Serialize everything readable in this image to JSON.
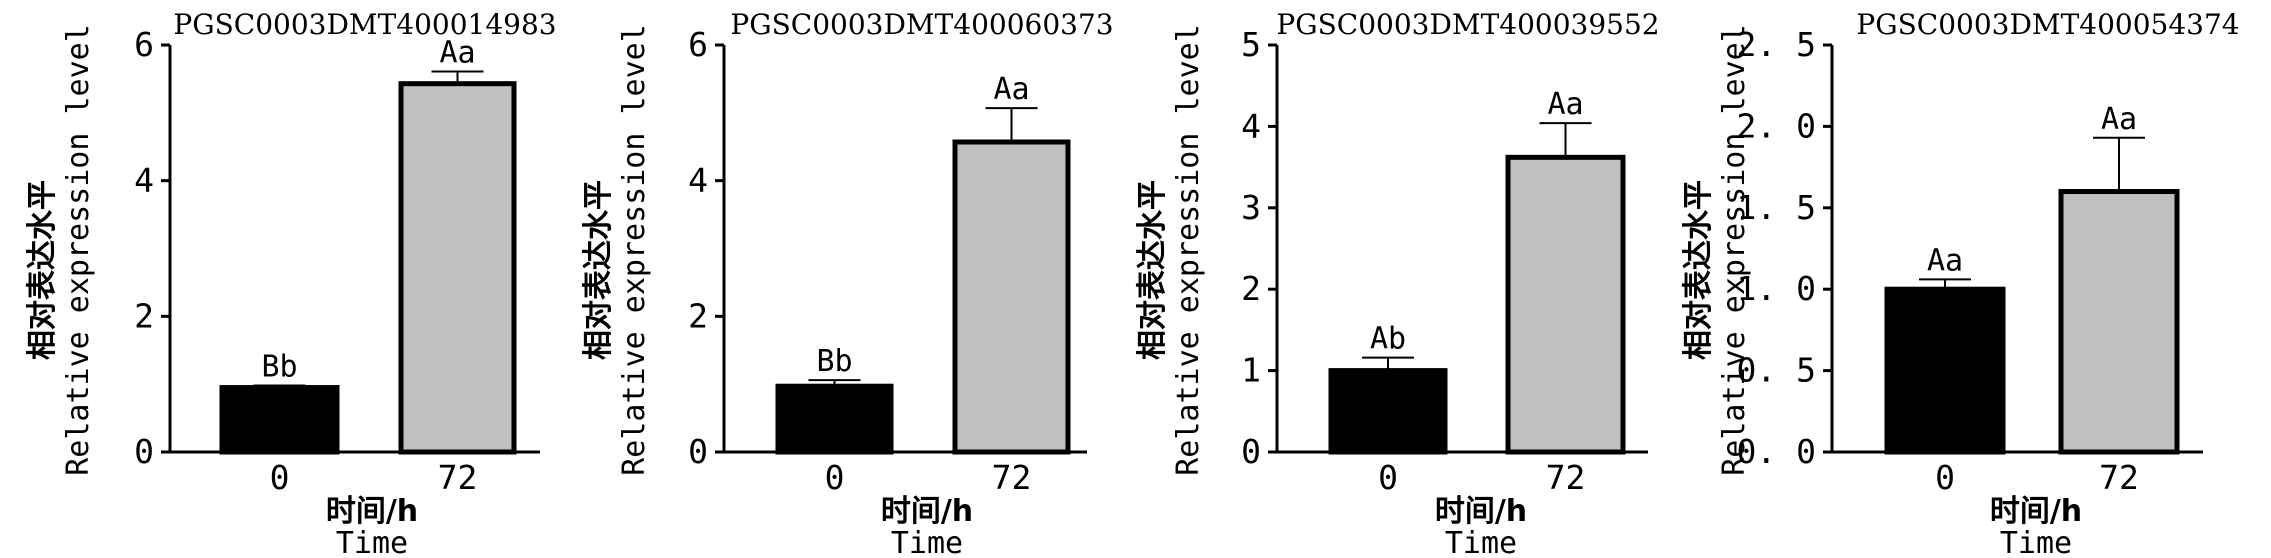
{
  "chart_data": [
    {
      "type": "bar",
      "title": "PGSC0003DMT400014983",
      "xlabel_cn": "时间/h",
      "xlabel": "Time",
      "ylabel_cn": "相对表达水平",
      "ylabel": "Relative expression level",
      "categories": [
        "0",
        "72"
      ],
      "values": [
        0.95,
        5.43
      ],
      "errors": [
        0.03,
        0.18
      ],
      "labels": [
        "Bb",
        "Aa"
      ],
      "colors": [
        "#000000",
        "#c0c0c0"
      ],
      "ylim": [
        0,
        6
      ],
      "yticks": [
        0,
        2,
        4,
        6
      ],
      "ytick_labels": [
        "0",
        "2",
        "4",
        "6"
      ]
    },
    {
      "type": "bar",
      "title": "PGSC0003DMT400060373",
      "xlabel_cn": "时间/h",
      "xlabel": "Time",
      "ylabel_cn": "相对表达水平",
      "ylabel": "Relative expression level",
      "categories": [
        "0",
        "72"
      ],
      "values": [
        0.97,
        4.57
      ],
      "errors": [
        0.09,
        0.5
      ],
      "labels": [
        "Bb",
        "Aa"
      ],
      "colors": [
        "#000000",
        "#c0c0c0"
      ],
      "ylim": [
        0,
        6
      ],
      "yticks": [
        0,
        2,
        4,
        6
      ],
      "ytick_labels": [
        "0",
        "2",
        "4",
        "6"
      ]
    },
    {
      "type": "bar",
      "title": "PGSC0003DMT400039552",
      "xlabel_cn": "时间/h",
      "xlabel": "Time",
      "ylabel_cn": "相对表达水平",
      "ylabel": "Relative expression level",
      "categories": [
        "0",
        "72"
      ],
      "values": [
        1.0,
        3.62
      ],
      "errors": [
        0.16,
        0.42
      ],
      "labels": [
        "Ab",
        "Aa"
      ],
      "colors": [
        "#000000",
        "#c0c0c0"
      ],
      "ylim": [
        0,
        5
      ],
      "yticks": [
        0,
        1,
        2,
        3,
        4,
        5
      ],
      "ytick_labels": [
        "0",
        "1",
        "2",
        "3",
        "4",
        "5"
      ]
    },
    {
      "type": "bar",
      "title": "PGSC0003DMT400054374",
      "xlabel_cn": "时间/h",
      "xlabel": "Time",
      "ylabel_cn": "相对表达水平",
      "ylabel": "Relative expression level",
      "categories": [
        "0",
        "72"
      ],
      "values": [
        1.0,
        1.6
      ],
      "errors": [
        0.06,
        0.33
      ],
      "labels": [
        "Aa",
        "Aa"
      ],
      "colors": [
        "#000000",
        "#c0c0c0"
      ],
      "ylim": [
        0,
        2.5
      ],
      "yticks": [
        0,
        0.5,
        1.0,
        1.5,
        2.0,
        2.5
      ],
      "ytick_labels": [
        "0. 0",
        "0. 5",
        "1. 0",
        "1. 5",
        "2. 0",
        "2. 5"
      ]
    }
  ]
}
